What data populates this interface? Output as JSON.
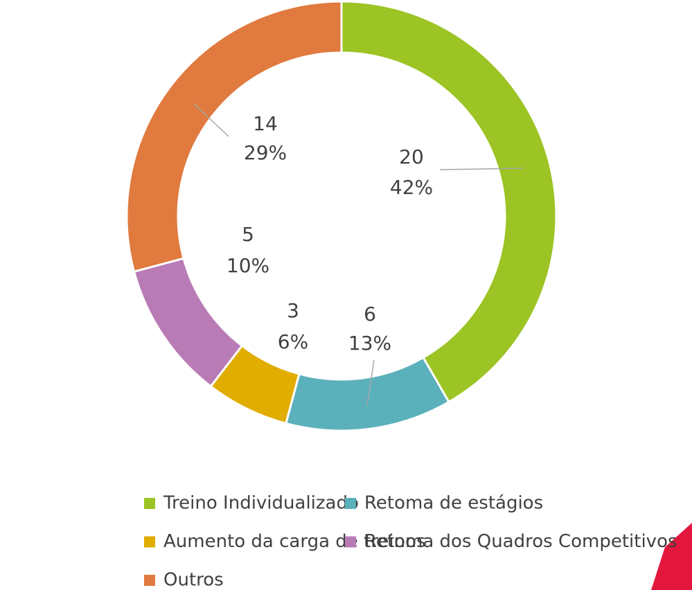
{
  "chart_data": {
    "type": "donut",
    "categories": [
      "Treino Individualizado",
      "Retoma de estágios",
      "Aumento da carga de treinos",
      "Retoma dos Quadros Competitivos",
      "Outros"
    ],
    "values": [
      20,
      6,
      3,
      5,
      14
    ],
    "percentage_labels": [
      "42%",
      "13%",
      "6%",
      "10%",
      "29%"
    ],
    "colors": [
      "#9bc424",
      "#5bb1bb",
      "#e0ad00",
      "#b97bb6",
      "#e07a3e"
    ],
    "legend": "bottom"
  }
}
